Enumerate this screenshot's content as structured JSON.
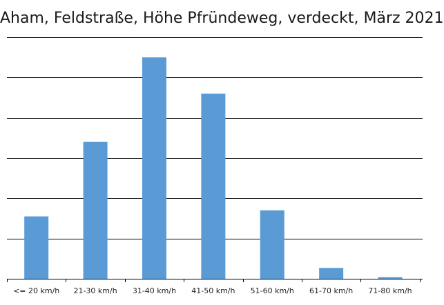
{
  "chart_data": {
    "type": "bar",
    "title": "Aham, Feldstraße, Höhe Pfründeweg, verdeckt, März 2021",
    "xlabel": "",
    "ylabel": "",
    "categories": [
      "<= 20 km/h",
      "21-30 km/h",
      "31-40 km/h",
      "41-50 km/h",
      "51-60 km/h",
      "61-70 km/h",
      "71-80 km/h"
    ],
    "values": [
      1.55,
      3.4,
      5.5,
      4.6,
      1.7,
      0.27,
      0.04
    ],
    "ylim": [
      0,
      6
    ],
    "gridlines": [
      1,
      2,
      3,
      4,
      5,
      6
    ],
    "grid": true,
    "bar_color": "#5b9bd5",
    "grid_color": "#000000"
  }
}
